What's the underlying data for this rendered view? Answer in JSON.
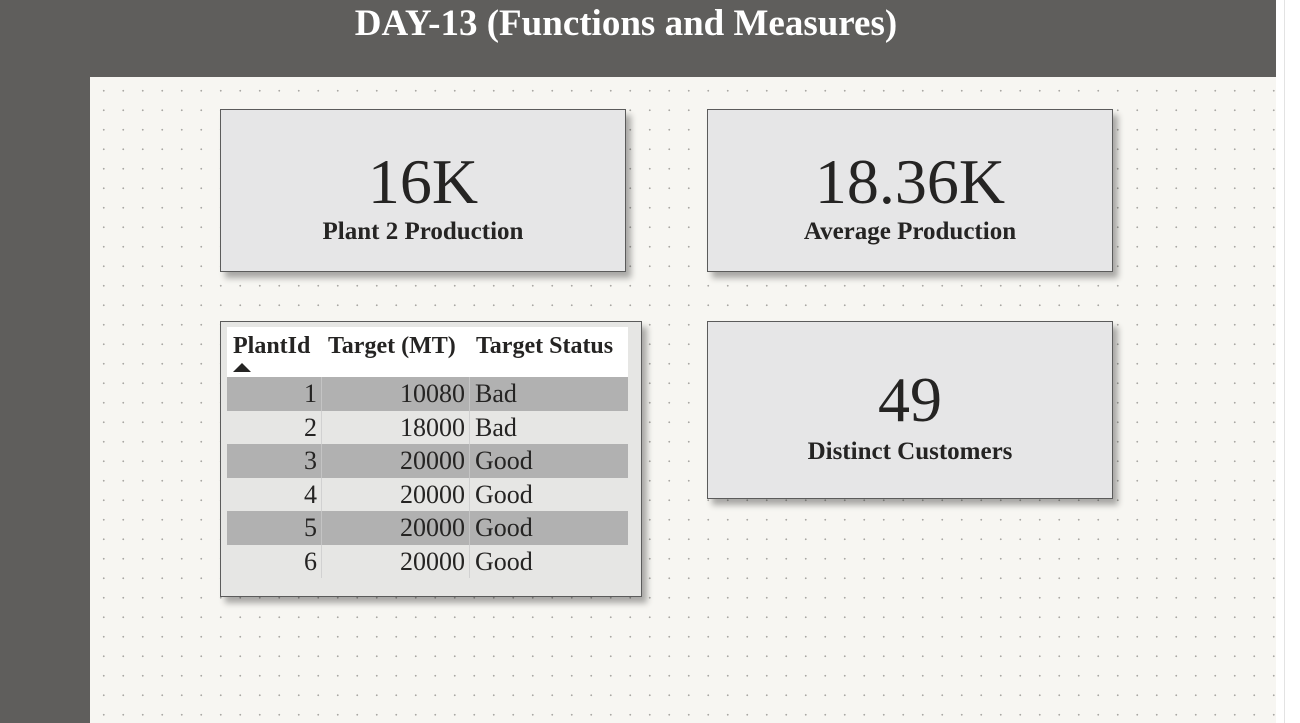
{
  "page": {
    "title": "DAY-13 (Functions and Measures)"
  },
  "cards": [
    {
      "value": "16K",
      "label": "Plant 2 Production"
    },
    {
      "value": "18.36K",
      "label": "Average Production"
    },
    {
      "value": "49",
      "label": "Distinct Customers"
    }
  ],
  "table": {
    "columns": [
      "PlantId",
      "Target (MT)",
      "Target Status"
    ],
    "sort_column": "PlantId",
    "sort_direction": "ascending",
    "rows": [
      {
        "plant": "1",
        "target": "10080",
        "status": "Bad"
      },
      {
        "plant": "2",
        "target": "18000",
        "status": "Bad"
      },
      {
        "plant": "3",
        "target": "20000",
        "status": "Good"
      },
      {
        "plant": "4",
        "target": "20000",
        "status": "Good"
      },
      {
        "plant": "5",
        "target": "20000",
        "status": "Good"
      },
      {
        "plant": "6",
        "target": "20000",
        "status": "Good"
      }
    ]
  },
  "colors": {
    "frame": "#5f5e5c",
    "canvas": "#f7f6f2",
    "card": "#e6e6e7",
    "row_dark": "#b1b1b1",
    "text": "#252423"
  }
}
